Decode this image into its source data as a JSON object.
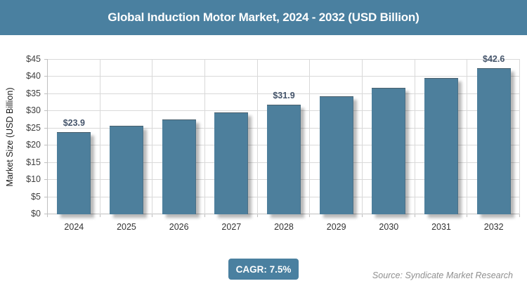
{
  "header": {
    "title": "Global Induction Motor Market, 2024 - 2032 (USD Billion)"
  },
  "chart_data": {
    "type": "bar",
    "title": "Global Induction Motor Market, 2024 - 2032 (USD Billion)",
    "categories": [
      "2024",
      "2025",
      "2026",
      "2027",
      "2028",
      "2029",
      "2030",
      "2031",
      "2032"
    ],
    "values": [
      23.9,
      25.7,
      27.6,
      29.7,
      31.9,
      34.3,
      36.9,
      39.6,
      42.6
    ],
    "bar_value_labels": [
      "$23.9",
      "",
      "",
      "",
      "$31.9",
      "",
      "",
      "",
      "$42.6"
    ],
    "ylabel": "Market Size (USD Billion)",
    "xlabel": "",
    "ylim": [
      0,
      45
    ],
    "ytick_step": 5,
    "ytick_labels": [
      "$0",
      "$5",
      "$10",
      "$15",
      "$20",
      "$25",
      "$30",
      "$35",
      "$40",
      "$45"
    ],
    "grid": true,
    "legend": "none"
  },
  "footer": {
    "cagr_label": "CAGR: 7.5%",
    "source": "Source: Syndicate Market Research"
  },
  "colors": {
    "accent": "#4a80a0",
    "bar": "#4d7f9c",
    "grid": "#d9d9d9",
    "axis": "#bfbfbf",
    "bar_label": "#44546a",
    "tick_text": "#3f3f3f",
    "source_text": "#8f8f8f",
    "title_text": "#ffffff"
  }
}
